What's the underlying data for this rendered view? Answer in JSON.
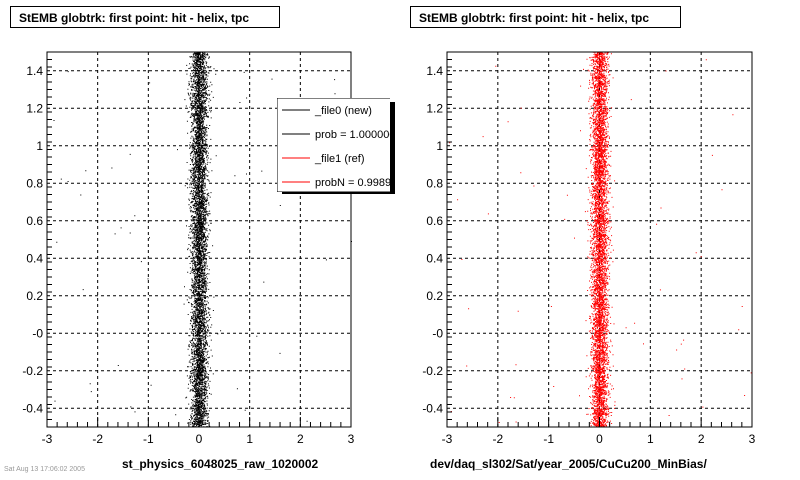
{
  "chart_data": [
    {
      "type": "scatter",
      "title": "StEMB globtrk: first point: hit - helix, tpc",
      "xlabel": "st_physics_6048025_raw_1020002",
      "ylabel": "",
      "xlim": [
        -3,
        3
      ],
      "ylim": [
        -0.5,
        1.5
      ],
      "x_ticks": [
        "-3",
        "-2",
        "-1",
        "0",
        "1",
        "2",
        "3"
      ],
      "y_ticks": [
        "-0.4",
        "-0.2",
        "-0",
        "0.2",
        "0.4",
        "0.6",
        "0.8",
        "1",
        "1.2",
        "1.4"
      ],
      "grid": true,
      "point_color": "#000000",
      "series": [
        {
          "x_center": 0.0,
          "x_spread": 0.12,
          "y_range": [
            -0.5,
            1.5
          ],
          "approx_points": 6000
        }
      ],
      "legend": {
        "placement": "top-right",
        "entries": [
          {
            "label": "_file0 (new)",
            "color": "#000000"
          },
          {
            "label": "prob = 1.000000",
            "color": "#000000"
          },
          {
            "label": "_file1 (ref)",
            "color": "#ff0000"
          },
          {
            "label": "probN = 0.998990",
            "color": "#ff0000"
          }
        ]
      }
    },
    {
      "type": "scatter",
      "title": "StEMB globtrk: first point: hit - helix, tpc",
      "xlabel": "dev/daq_sl302/Sat/year_2005/CuCu200_MinBias/",
      "ylabel": "",
      "xlim": [
        -3,
        3
      ],
      "ylim": [
        -0.5,
        1.5
      ],
      "x_ticks": [
        "-3",
        "-2",
        "-1",
        "0",
        "1",
        "2",
        "3"
      ],
      "y_ticks": [
        "-0.4",
        "-0.2",
        "-0",
        "0.2",
        "0.4",
        "0.6",
        "0.8",
        "1",
        "1.2",
        "1.4"
      ],
      "grid": true,
      "point_color": "#ff0000",
      "series": [
        {
          "x_center": 0.0,
          "x_spread": 0.12,
          "y_range": [
            -0.5,
            1.5
          ],
          "approx_points": 6000
        }
      ]
    }
  ],
  "footer_text": "Sat Aug 13 17:06:02 2005"
}
